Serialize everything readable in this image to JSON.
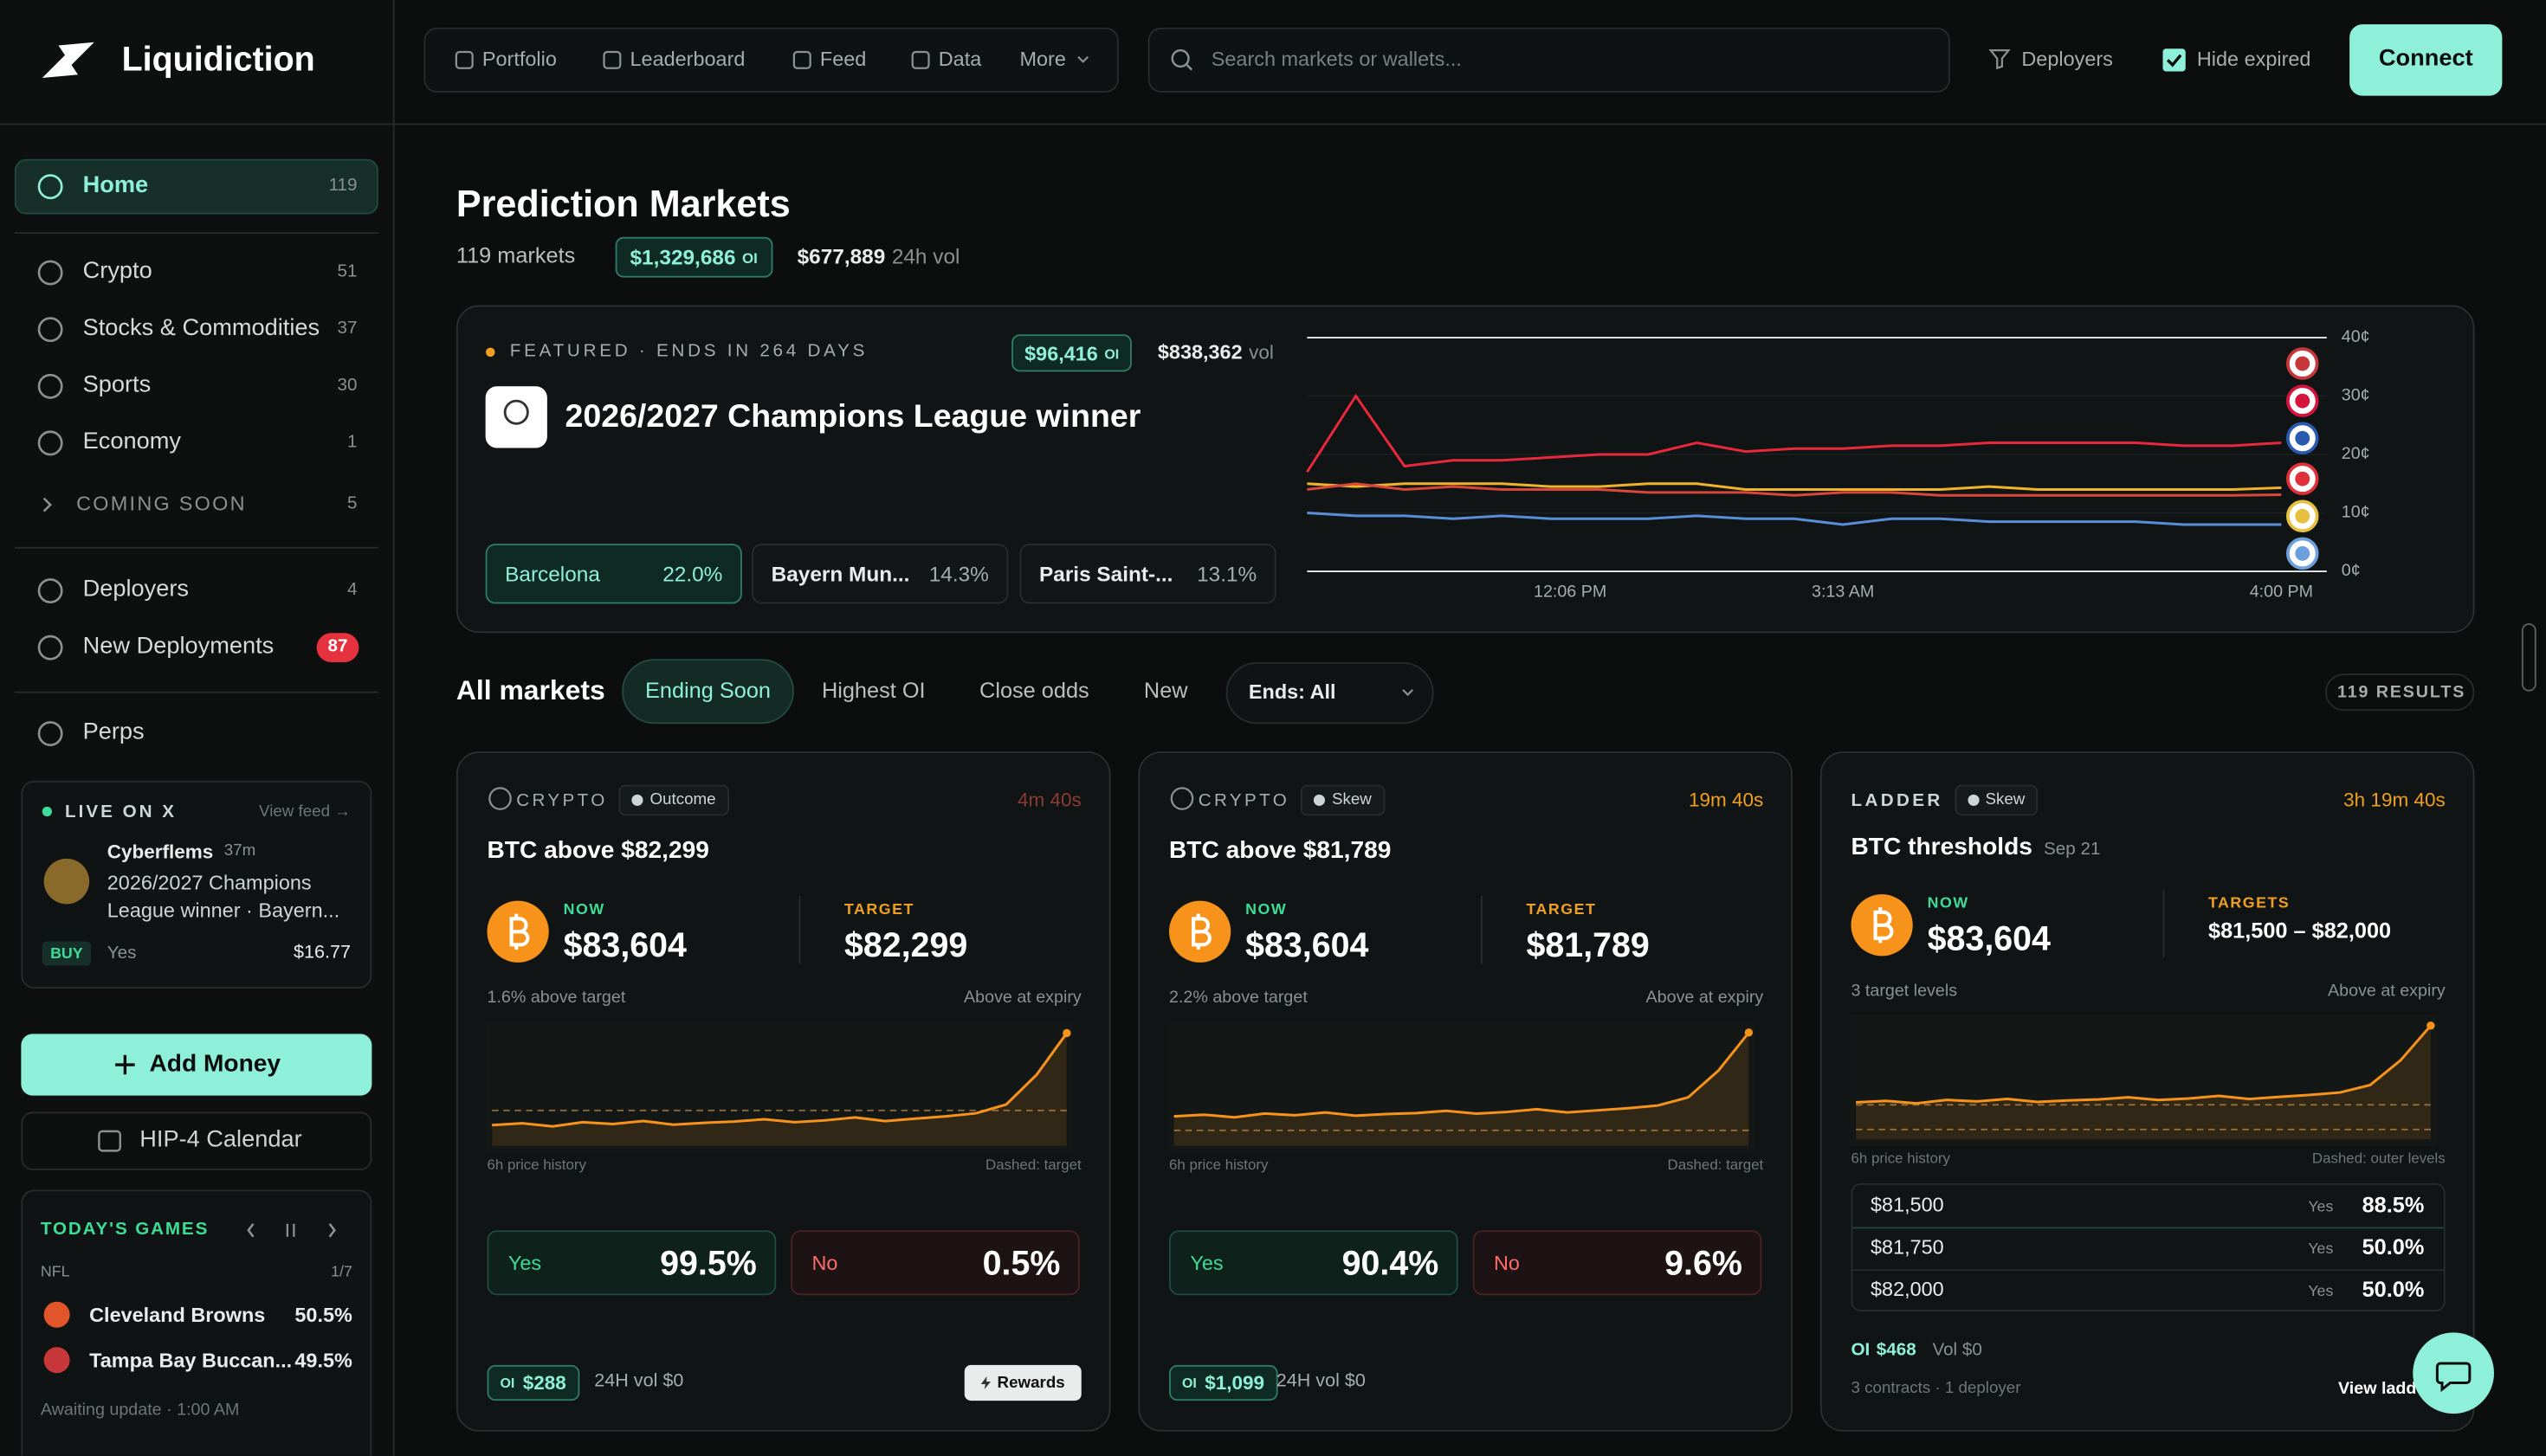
{
  "app": {
    "brand": "Liquidiction"
  },
  "nav": {
    "items": [
      "Portfolio",
      "Leaderboard",
      "Feed",
      "Data",
      "More"
    ],
    "search": "Search markets or wallets...",
    "deployers": "Deployers",
    "hide_expired": "Hide expired",
    "connect": "Connect"
  },
  "sidebar": {
    "menu": [
      {
        "label": "Home",
        "count": 119
      },
      {
        "label": "Crypto",
        "count": 51
      },
      {
        "label": "Stocks & Commodities",
        "count": 37
      },
      {
        "label": "Sports",
        "count": 30
      },
      {
        "label": "Economy",
        "count": 1
      },
      {
        "label": "COMING SOON",
        "count": 5
      },
      {
        "label": "Deployers",
        "count": 4
      },
      {
        "label": "New Deployments",
        "count": 87
      },
      {
        "label": "Perps"
      }
    ],
    "live": {
      "title": "LIVE ON X",
      "link": "View feed →",
      "user": "Cyberflems",
      "time": "37m",
      "text": "2026/2027 Champions League winner · Bayern...",
      "side": "BUY",
      "outcome": "Yes",
      "amount": "$16.77"
    },
    "add_money": "Add Money",
    "calendar": "HIP-4 Calendar",
    "games": {
      "title": "TODAY'S GAMES",
      "league": "NFL",
      "page": "1/7",
      "teams": [
        {
          "name": "Cleveland Browns",
          "pct": "50.5%"
        },
        {
          "name": "Tampa Bay Buccan...",
          "pct": "49.5%"
        }
      ],
      "status": "Awaiting update · 1:00 AM"
    }
  },
  "page": {
    "title": "Prediction Markets",
    "markets": "119 markets",
    "oi": "$1,329,686",
    "oi_tag": "OI",
    "vol": "$677,889",
    "vol_label": "24h vol"
  },
  "featured": {
    "label": "FEATURED · ENDS IN 264 DAYS",
    "oi": "$96,416",
    "oi_tag": "OI",
    "vol": "$838,362",
    "vol_label": "vol",
    "title": "2026/2027 Champions League winner",
    "outcomes": [
      {
        "name": "Barcelona",
        "pct": "22.0%"
      },
      {
        "name": "Bayern Mun...",
        "pct": "14.3%"
      },
      {
        "name": "Paris Saint-...",
        "pct": "13.1%"
      }
    ],
    "chart": {
      "type": "line",
      "xlim": [
        0,
        100
      ],
      "xticks": [
        {
          "value": 27,
          "label": "12:06 PM"
        },
        {
          "value": 55,
          "label": "3:13 AM"
        },
        {
          "value": 100,
          "label": "4:00 PM"
        }
      ],
      "ylim": [
        0,
        40
      ],
      "yticks": [
        {
          "value": 0,
          "label": "0¢"
        },
        {
          "value": 10,
          "label": "10¢"
        },
        {
          "value": 20,
          "label": "20¢"
        },
        {
          "value": 30,
          "label": "30¢"
        },
        {
          "value": 40,
          "label": "40¢"
        }
      ],
      "x": [
        0,
        5,
        10,
        15,
        20,
        25,
        30,
        35,
        40,
        45,
        50,
        55,
        60,
        65,
        70,
        75,
        80,
        85,
        90,
        95,
        100
      ],
      "series": [
        {
          "color": "#e8283c",
          "values": [
            17,
            30,
            18,
            19,
            19,
            19.5,
            20,
            20,
            22,
            20.5,
            21,
            21,
            21.5,
            21.5,
            22,
            22,
            22,
            22,
            21.5,
            21.5,
            22
          ]
        },
        {
          "color": "#f0b429",
          "values": [
            15,
            14.5,
            15,
            15,
            15,
            14.5,
            14.5,
            15,
            15,
            14,
            14,
            14,
            14,
            14,
            14.5,
            14,
            14,
            14,
            14,
            14,
            14.3
          ]
        },
        {
          "color": "#d9463a",
          "values": [
            14,
            15,
            14,
            14.5,
            14,
            14,
            14,
            13.5,
            13.5,
            13.5,
            13,
            13.5,
            13.5,
            13,
            13,
            13,
            13,
            13,
            13,
            13,
            13.1
          ]
        },
        {
          "color": "#5a8fd8",
          "values": [
            10,
            9.5,
            9.5,
            9,
            9.5,
            9,
            9,
            9,
            9.5,
            9,
            9,
            8,
            9,
            9,
            8.5,
            8.5,
            8.5,
            8.5,
            8,
            8,
            8
          ]
        }
      ]
    }
  },
  "filters": {
    "title": "All markets",
    "tabs": [
      "Ending Soon",
      "Highest OI",
      "Close odds",
      "New"
    ],
    "select": "Ends: All",
    "results": "119 RESULTS"
  },
  "cards": [
    {
      "category": "CRYPTO",
      "kind": "Outcome",
      "timer": "4m 40s",
      "title": "BTC above $82,299",
      "now_label": "NOW",
      "now": "$83,604",
      "target_label": "TARGET",
      "target": "$82,299",
      "note": "1.6% above target",
      "expiry": "Above at expiry",
      "history_label": "6h price history",
      "dashed_label": "Dashed: target",
      "yes_label": "Yes",
      "yes": "99.5%",
      "no_label": "No",
      "no": "0.5%",
      "oi_tag": "OI",
      "oi": "$288",
      "vol": "24H vol $0",
      "badge": "Rewards",
      "spark": {
        "ylim": [
          81700,
          83700
        ],
        "targets": [
          82299
        ],
        "values": [
          82050,
          82080,
          82030,
          82100,
          82070,
          82120,
          82060,
          82090,
          82110,
          82150,
          82100,
          82130,
          82180,
          82120,
          82160,
          82200,
          82250,
          82400,
          82900,
          83604
        ]
      }
    },
    {
      "category": "CRYPTO",
      "kind": "Skew",
      "timer": "19m 40s",
      "title": "BTC above $81,789",
      "now_label": "NOW",
      "now": "$83,604",
      "target_label": "TARGET",
      "target": "$81,789",
      "note": "2.2% above target",
      "expiry": "Above at expiry",
      "history_label": "6h price history",
      "dashed_label": "Dashed: target",
      "yes_label": "Yes",
      "yes": "90.4%",
      "no_label": "No",
      "no": "9.6%",
      "oi_tag": "OI",
      "oi": "$1,099",
      "vol": "24H vol $0",
      "spark": {
        "ylim": [
          81500,
          83700
        ],
        "targets": [
          81789
        ],
        "values": [
          82050,
          82080,
          82030,
          82100,
          82070,
          82120,
          82060,
          82090,
          82110,
          82150,
          82100,
          82130,
          82180,
          82120,
          82160,
          82200,
          82250,
          82400,
          82900,
          83604
        ]
      }
    },
    {
      "category": "LADDER",
      "kind": "Skew",
      "timer": "3h 19m 40s",
      "title": "BTC thresholds",
      "date": "Sep 21",
      "now_label": "NOW",
      "now": "$83,604",
      "target_label": "TARGETS",
      "target": "$81,500 – $82,000",
      "note": "3 target levels",
      "expiry": "Above at expiry",
      "history_label": "6h price history",
      "dashed_label": "Dashed: outer levels",
      "ladder": [
        {
          "price": "$81,500",
          "side": "Yes",
          "pct": "88.5%"
        },
        {
          "price": "$81,750",
          "side": "Yes",
          "pct": "50.0%"
        },
        {
          "price": "$82,000",
          "side": "Yes",
          "pct": "50.0%"
        }
      ],
      "oi_tag": "OI",
      "oi": "$468",
      "vol": "Vol $0",
      "footer": "3 contracts · 1 deployer",
      "link": "View ladder",
      "spark": {
        "ylim": [
          81300,
          83700
        ],
        "targets": [
          81500,
          82000
        ],
        "values": [
          82050,
          82080,
          82030,
          82100,
          82070,
          82120,
          82060,
          82090,
          82110,
          82150,
          82100,
          82130,
          82180,
          82120,
          82160,
          82200,
          82250,
          82400,
          82900,
          83604
        ]
      }
    }
  ]
}
